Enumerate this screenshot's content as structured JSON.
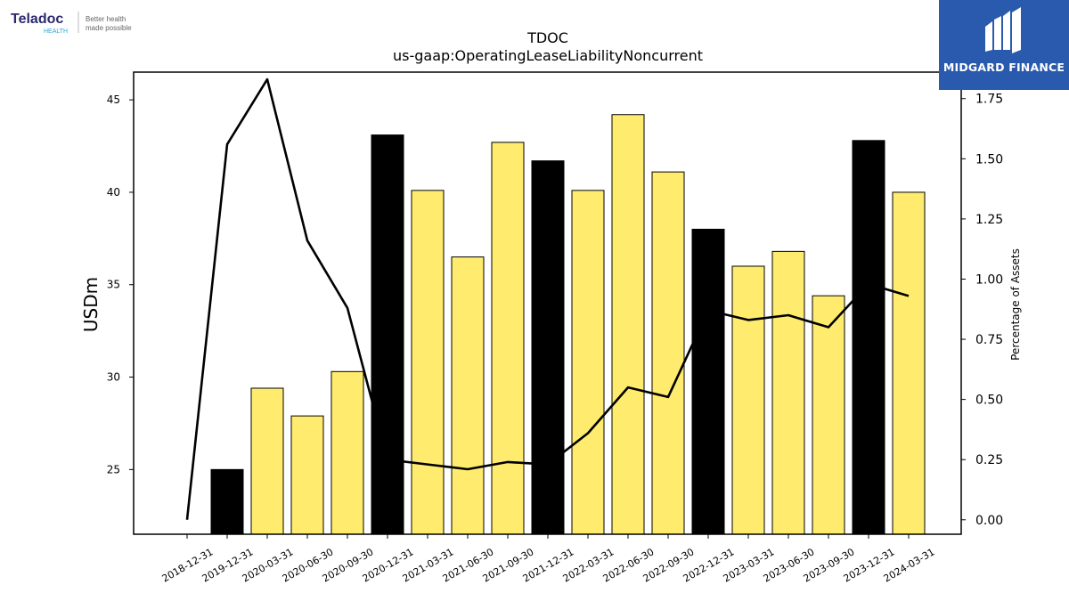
{
  "logos": {
    "teladoc": {
      "name": "Teladoc",
      "sub": "HEALTH",
      "tagline_1": "Better health",
      "tagline_2": "made possible"
    },
    "midgard": {
      "name": "MIDGARD FINANCE",
      "color": "#2a5aad"
    }
  },
  "chart_data": {
    "type": "bar",
    "title": "TDOC",
    "subtitle": "us-gaap:OperatingLeaseLiabilityNoncurrent",
    "ylabel": "USDm",
    "y2label": "Percentage of Assets",
    "ylim": [
      21.5,
      46.5
    ],
    "y2lim": [
      -0.06,
      1.86
    ],
    "yticks": [
      25,
      30,
      35,
      40,
      45
    ],
    "y2ticks": [
      "0.00",
      "0.25",
      "0.50",
      "0.75",
      "1.00",
      "1.25",
      "1.50",
      "1.75"
    ],
    "categories": [
      "2018-12-31",
      "2019-12-31",
      "2020-03-31",
      "2020-06-30",
      "2020-09-30",
      "2020-12-31",
      "2021-03-31",
      "2021-06-30",
      "2021-09-30",
      "2021-12-31",
      "2022-03-31",
      "2022-06-30",
      "2022-09-30",
      "2022-12-31",
      "2023-03-31",
      "2023-06-30",
      "2023-09-30",
      "2023-12-31",
      "2024-03-31"
    ],
    "series": [
      {
        "type": "bar",
        "values": [
          null,
          25.0,
          29.4,
          27.9,
          30.3,
          43.1,
          40.1,
          36.5,
          42.7,
          41.7,
          40.1,
          44.2,
          41.1,
          38.0,
          36.0,
          36.8,
          34.4,
          42.8,
          40.0
        ]
      },
      {
        "type": "line",
        "axis": "right",
        "values": [
          0.0,
          1.56,
          1.83,
          1.16,
          0.88,
          0.25,
          0.23,
          0.21,
          0.24,
          0.23,
          0.36,
          0.55,
          0.51,
          0.87,
          0.83,
          0.85,
          0.8,
          0.98,
          0.93
        ]
      }
    ],
    "year_end_flags": [
      false,
      true,
      false,
      false,
      false,
      true,
      false,
      false,
      false,
      true,
      false,
      false,
      false,
      true,
      false,
      false,
      false,
      true,
      false
    ],
    "colors": {
      "bar_annual": "#000000",
      "bar_quarterly": "#ffec6e",
      "bar_edge": "#000000",
      "line": "#000000"
    }
  }
}
